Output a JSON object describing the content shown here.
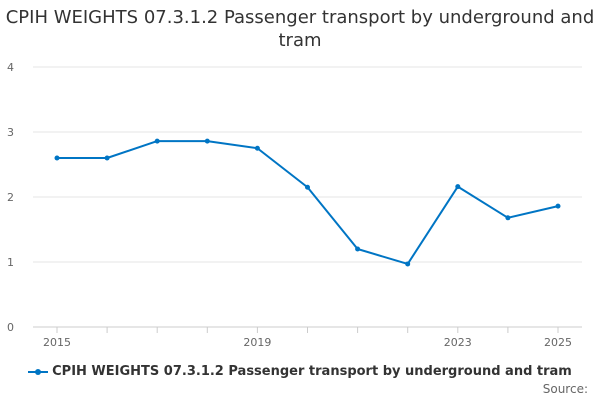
{
  "chart_data": {
    "type": "line",
    "title": "CPIH WEIGHTS 07.3.1.2 Passenger transport by underground and tram",
    "xlabel": "",
    "ylabel": "",
    "x": [
      2015,
      2016,
      2017,
      2018,
      2019,
      2020,
      2021,
      2022,
      2023,
      2024,
      2025
    ],
    "x_tick_labels": [
      "2015",
      "2019",
      "2023",
      "2025"
    ],
    "y_ticks": [
      0,
      1,
      2,
      3,
      4
    ],
    "ylim": [
      0,
      4
    ],
    "grid": true,
    "legend_position": "bottom",
    "series": [
      {
        "name": "CPIH WEIGHTS 07.3.1.2 Passenger transport by underground and tram",
        "values": [
          2.6,
          2.6,
          2.86,
          2.86,
          2.75,
          2.15,
          1.2,
          0.97,
          2.16,
          1.68,
          1.86
        ],
        "color": "#0075c4"
      }
    ],
    "source_label": "Source:"
  }
}
